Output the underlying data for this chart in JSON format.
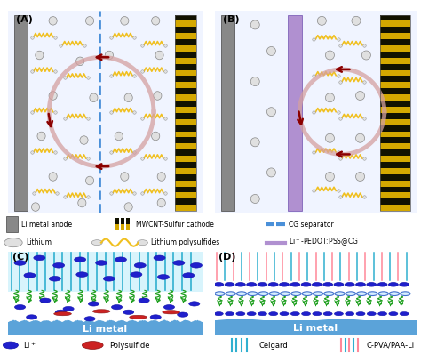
{
  "figsize": [
    4.74,
    3.99
  ],
  "dpi": 100,
  "anode_color": "#888888",
  "cathode_yellow": "#d4a800",
  "cathode_black": "#111100",
  "separator_A_color": "#4a90d9",
  "separator_B_color": "#b090d0",
  "polysulfide_color": "#f0c020",
  "li_atom_fc": "#e0e0e0",
  "li_atom_ec": "#888888",
  "circle_arrow_color": "#d4a0a0",
  "dark_arrow_color": "#8b0000",
  "celgard_color": "#30b0d0",
  "cpva_color": "#ff8899",
  "chain_color": "#20a020",
  "li_ion_fc": "#2020cc",
  "li_metal_color": "#5ba3d9",
  "ps_blob_color": "#cc2222",
  "white": "#ffffff",
  "label_A": "(A)",
  "label_B": "(B)",
  "label_C": "(C)",
  "label_D": "(D)",
  "li_metal_text": "Li metal",
  "legend_anode": "Li metal anode",
  "legend_cathode": "MWCNT-Sulfur cathode",
  "legend_cg": "CG separator",
  "legend_lithium": "Lithium",
  "legend_polysu": "Lithium polysulfides",
  "legend_pedot": "Li$^+$-PEDOT:PSS@CG",
  "legend_liion": "Li$^+$",
  "legend_polysulfide": "Polysulfide",
  "legend_celgard": "Celgard",
  "legend_cpva": "C-PVA/PAA-Li"
}
